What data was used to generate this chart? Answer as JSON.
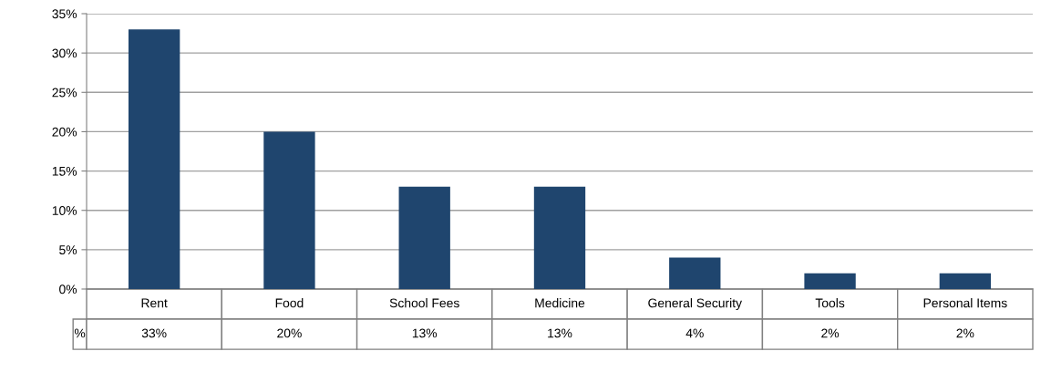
{
  "chart_data": {
    "type": "bar",
    "categories": [
      "Rent",
      "Food",
      "School Fees",
      "Medicine",
      "General Security",
      "Tools",
      "Personal Items"
    ],
    "series": [
      {
        "name": "%",
        "color": "#1f456e",
        "values": [
          33,
          20,
          13,
          13,
          4,
          2,
          2
        ],
        "value_labels": [
          "33%",
          "20%",
          "13%",
          "13%",
          "4%",
          "2%",
          "2%"
        ]
      }
    ],
    "ylim": [
      0,
      35
    ],
    "yticks": [
      {
        "value": 0,
        "label": "0%"
      },
      {
        "value": 5,
        "label": "5%"
      },
      {
        "value": 10,
        "label": "10%"
      },
      {
        "value": 15,
        "label": "15%"
      },
      {
        "value": 20,
        "label": "20%"
      },
      {
        "value": 25,
        "label": "25%"
      },
      {
        "value": 30,
        "label": "30%"
      },
      {
        "value": 35,
        "label": "35%"
      }
    ],
    "grid": "y",
    "legend": false
  }
}
